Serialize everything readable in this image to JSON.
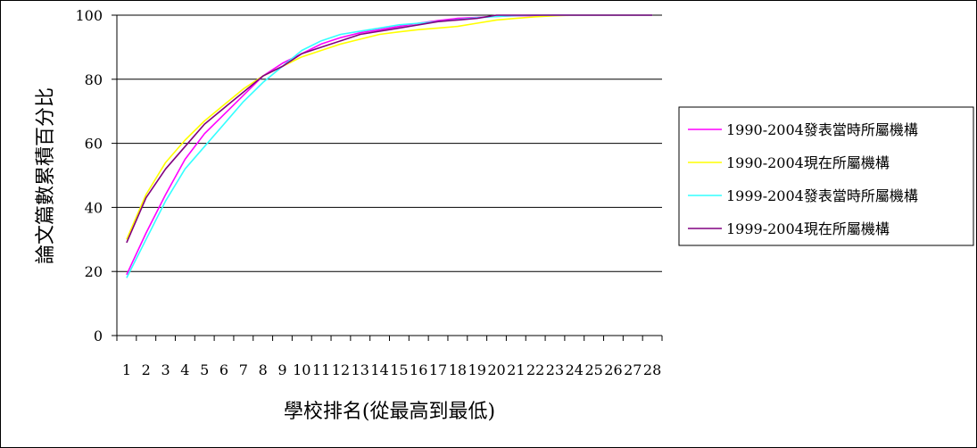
{
  "chart_data": {
    "type": "line",
    "title": "",
    "xlabel": "學校排名(從最高到最低)",
    "ylabel": "論文篇數累積百分比",
    "ylim": [
      0,
      100
    ],
    "yticks": [
      0,
      20,
      40,
      60,
      80,
      100
    ],
    "categories": [
      "1",
      "2",
      "3",
      "4",
      "5",
      "6",
      "7",
      "8",
      "9",
      "10",
      "11",
      "12",
      "13",
      "14",
      "15",
      "16",
      "17",
      "18",
      "19",
      "20",
      "21",
      "22",
      "23",
      "24",
      "25",
      "26",
      "27",
      "28"
    ],
    "grid": "horizontal",
    "legend_position": "right",
    "series": [
      {
        "name": "1990-2004發表當時所屬機構",
        "color": "#ff00ff",
        "values": [
          19,
          32,
          44,
          55,
          63,
          69,
          75,
          81,
          85,
          88,
          91,
          93,
          94.5,
          95.5,
          96.5,
          97.5,
          98.3,
          99,
          99.3,
          99.6,
          99.8,
          99.9,
          100,
          100,
          100,
          100,
          100,
          100
        ]
      },
      {
        "name": "1990-2004現在所屬機構",
        "color": "#ffff00",
        "values": [
          30,
          44,
          54,
          61,
          67,
          72,
          77,
          81,
          84,
          87,
          89,
          91,
          92.5,
          94,
          94.8,
          95.5,
          96,
          96.5,
          97.5,
          98.5,
          99,
          99.5,
          99.8,
          100,
          100,
          100,
          100,
          100
        ]
      },
      {
        "name": "1999-2004發表當時所屬機構",
        "color": "#33ffff",
        "values": [
          18,
          30,
          42,
          52,
          59,
          66,
          73,
          79,
          84,
          89,
          92,
          94,
          95,
          96,
          97,
          97.5,
          98,
          98.6,
          99.2,
          99.6,
          99.9,
          100,
          100,
          100,
          100,
          100,
          100,
          100
        ]
      },
      {
        "name": "1999-2004現在所屬機構",
        "color": "#800080",
        "values": [
          29,
          43,
          52,
          59,
          66,
          71,
          76,
          81,
          84,
          88,
          90,
          92,
          94,
          95,
          96,
          97,
          98,
          98.5,
          99,
          100,
          100,
          100,
          100,
          100,
          100,
          100,
          100,
          100
        ]
      }
    ]
  }
}
